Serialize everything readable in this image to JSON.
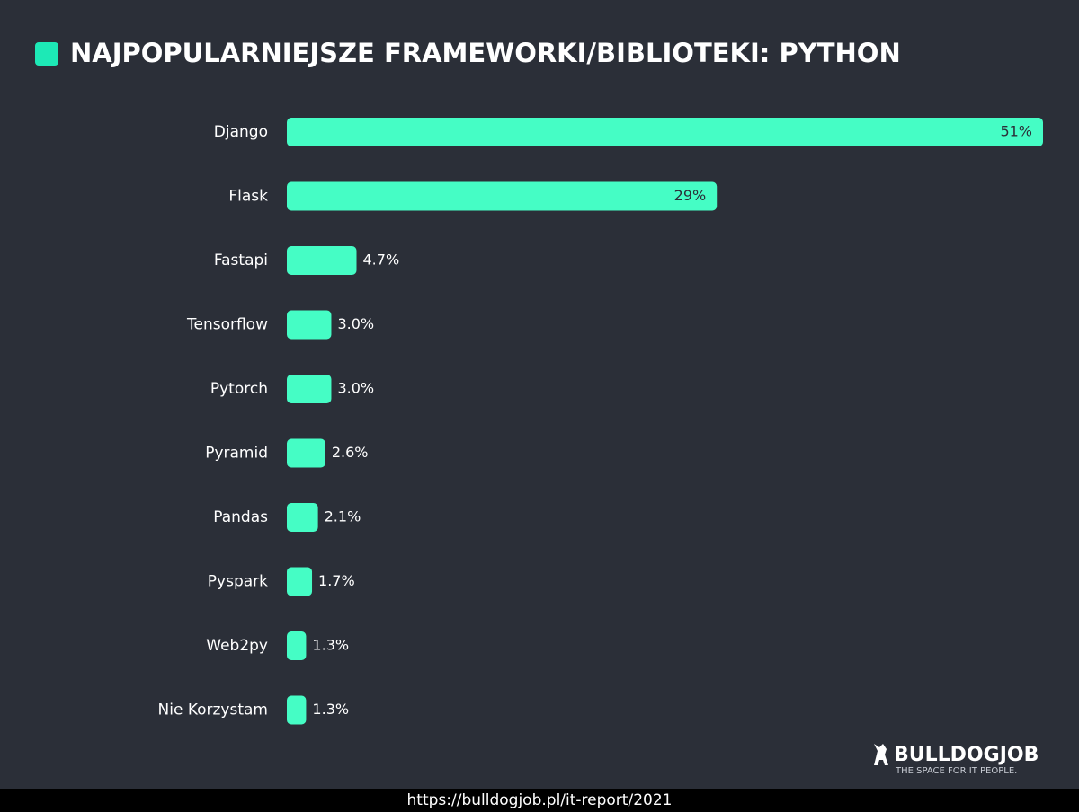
{
  "chart_data": {
    "type": "bar",
    "orientation": "horizontal",
    "title": "NAJPOPULARNIEJSZE FRAMEWORKI/BIBLIOTEKI: PYTHON",
    "categories": [
      "Django",
      "Flask",
      "Fastapi",
      "Tensorflow",
      "Pytorch",
      "Pyramid",
      "Pandas",
      "Pyspark",
      "Web2py",
      "Nie Korzystam"
    ],
    "values": [
      51,
      29,
      4.7,
      3.0,
      3.0,
      2.6,
      2.1,
      1.7,
      1.3,
      1.3
    ],
    "value_labels": [
      "51%",
      "29%",
      "4.7%",
      "3.0%",
      "3.0%",
      "2.6%",
      "2.1%",
      "1.7%",
      "1.3%",
      "1.3%"
    ],
    "color": "#45fdc5"
  },
  "logo": {
    "name": "BULLDOGJOB",
    "tagline": "THE SPACE FOR IT PEOPLE."
  },
  "footer": {
    "url": "https://bulldogjob.pl/it-report/2021"
  }
}
